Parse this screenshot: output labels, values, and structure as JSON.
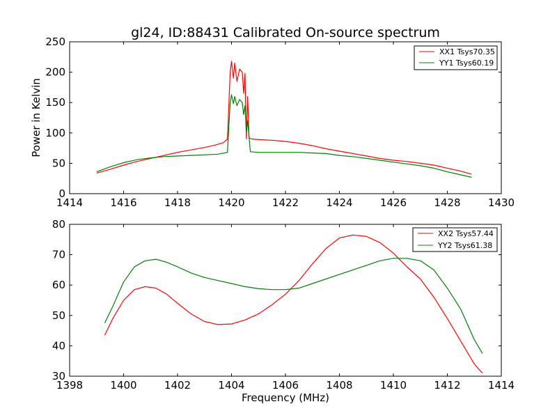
{
  "chart_data": [
    {
      "type": "line",
      "title": "gl24, ID:88431 Calibrated On-source spectrum",
      "xlabel": "",
      "ylabel": "Power in Kelvin",
      "xlim": [
        1414,
        1430
      ],
      "ylim": [
        0,
        250
      ],
      "x_ticks": [
        "1414",
        "1416",
        "1418",
        "1420",
        "1422",
        "1424",
        "1426",
        "1428",
        "1430"
      ],
      "y_ticks": [
        "0",
        "50",
        "100",
        "150",
        "200",
        "250"
      ],
      "legend_position": "top-right",
      "grid": false,
      "series": [
        {
          "name": "XX1 Tsys70.35",
          "color": "#ff0000",
          "points": [
            [
              1415.0,
              34
            ],
            [
              1415.5,
              40
            ],
            [
              1416.0,
              47
            ],
            [
              1416.5,
              53
            ],
            [
              1417.0,
              58
            ],
            [
              1417.5,
              63
            ],
            [
              1418.0,
              68
            ],
            [
              1418.5,
              72
            ],
            [
              1419.0,
              76
            ],
            [
              1419.4,
              80
            ],
            [
              1419.7,
              84
            ],
            [
              1419.85,
              90
            ],
            [
              1419.95,
              200
            ],
            [
              1420.0,
              218
            ],
            [
              1420.07,
              190
            ],
            [
              1420.12,
              215
            ],
            [
              1420.2,
              185
            ],
            [
              1420.3,
              205
            ],
            [
              1420.4,
              200
            ],
            [
              1420.45,
              165
            ],
            [
              1420.5,
              198
            ],
            [
              1420.55,
              90
            ],
            [
              1420.6,
              160
            ],
            [
              1420.65,
              92
            ],
            [
              1420.75,
              90
            ],
            [
              1421.0,
              89
            ],
            [
              1421.5,
              88
            ],
            [
              1422.0,
              86
            ],
            [
              1422.5,
              83
            ],
            [
              1423.0,
              79
            ],
            [
              1423.5,
              74
            ],
            [
              1424.0,
              70
            ],
            [
              1424.5,
              66
            ],
            [
              1425.0,
              62
            ],
            [
              1425.5,
              58
            ],
            [
              1426.0,
              55
            ],
            [
              1426.5,
              53
            ],
            [
              1427.0,
              50
            ],
            [
              1427.5,
              47
            ],
            [
              1428.0,
              42
            ],
            [
              1428.5,
              37
            ],
            [
              1428.9,
              32
            ]
          ]
        },
        {
          "name": "YY1 Tsys60.19",
          "color": "#008000",
          "points": [
            [
              1415.0,
              36
            ],
            [
              1415.5,
              44
            ],
            [
              1416.0,
              51
            ],
            [
              1416.5,
              56
            ],
            [
              1417.0,
              59
            ],
            [
              1417.5,
              61
            ],
            [
              1418.0,
              62
            ],
            [
              1418.5,
              63
            ],
            [
              1419.0,
              64
            ],
            [
              1419.5,
              65
            ],
            [
              1419.85,
              68
            ],
            [
              1419.95,
              150
            ],
            [
              1420.0,
              163
            ],
            [
              1420.07,
              148
            ],
            [
              1420.12,
              160
            ],
            [
              1420.2,
              145
            ],
            [
              1420.3,
              155
            ],
            [
              1420.4,
              150
            ],
            [
              1420.45,
              130
            ],
            [
              1420.5,
              145
            ],
            [
              1420.55,
              100
            ],
            [
              1420.6,
              120
            ],
            [
              1420.7,
              69
            ],
            [
              1421.0,
              68
            ],
            [
              1421.5,
              68
            ],
            [
              1422.0,
              68
            ],
            [
              1422.5,
              68
            ],
            [
              1423.0,
              67
            ],
            [
              1423.5,
              66
            ],
            [
              1424.0,
              63
            ],
            [
              1424.5,
              61
            ],
            [
              1425.0,
              58
            ],
            [
              1425.5,
              55
            ],
            [
              1426.0,
              52
            ],
            [
              1426.5,
              49
            ],
            [
              1427.0,
              46
            ],
            [
              1427.5,
              42
            ],
            [
              1428.0,
              36
            ],
            [
              1428.5,
              31
            ],
            [
              1428.9,
              27
            ]
          ]
        }
      ]
    },
    {
      "type": "line",
      "title": "",
      "xlabel": "Frequency (MHz)",
      "ylabel": "",
      "xlim": [
        1398,
        1414
      ],
      "ylim": [
        30,
        80
      ],
      "x_ticks": [
        "1398",
        "1400",
        "1402",
        "1404",
        "1406",
        "1408",
        "1410",
        "1412",
        "1414"
      ],
      "y_ticks": [
        "30",
        "40",
        "50",
        "60",
        "70",
        "80"
      ],
      "legend_position": "top-right",
      "grid": false,
      "series": [
        {
          "name": "XX2 Tsys57.44",
          "color": "#ff0000",
          "points": [
            [
              1399.3,
              43.5
            ],
            [
              1399.6,
              49
            ],
            [
              1400.0,
              55
            ],
            [
              1400.4,
              58.5
            ],
            [
              1400.8,
              59.5
            ],
            [
              1401.2,
              59
            ],
            [
              1401.6,
              57
            ],
            [
              1402.0,
              54
            ],
            [
              1402.5,
              50.5
            ],
            [
              1403.0,
              48
            ],
            [
              1403.5,
              47
            ],
            [
              1404.0,
              47.2
            ],
            [
              1404.5,
              48.5
            ],
            [
              1405.0,
              50.5
            ],
            [
              1405.5,
              53.5
            ],
            [
              1406.0,
              57
            ],
            [
              1406.5,
              61.5
            ],
            [
              1407.0,
              67
            ],
            [
              1407.5,
              72
            ],
            [
              1408.0,
              75.5
            ],
            [
              1408.5,
              76.5
            ],
            [
              1409.0,
              76
            ],
            [
              1409.5,
              74
            ],
            [
              1410.0,
              70.5
            ],
            [
              1410.5,
              66
            ],
            [
              1411.0,
              62
            ],
            [
              1411.5,
              56
            ],
            [
              1412.0,
              49
            ],
            [
              1412.5,
              41.5
            ],
            [
              1413.0,
              34
            ],
            [
              1413.3,
              31
            ]
          ]
        },
        {
          "name": "YY2 Tsys61.38",
          "color": "#008000",
          "points": [
            [
              1399.3,
              47.5
            ],
            [
              1399.6,
              53
            ],
            [
              1400.0,
              61
            ],
            [
              1400.4,
              66
            ],
            [
              1400.8,
              68
            ],
            [
              1401.2,
              68.5
            ],
            [
              1401.6,
              67.5
            ],
            [
              1402.0,
              66
            ],
            [
              1402.5,
              64
            ],
            [
              1403.0,
              62.5
            ],
            [
              1403.5,
              61.5
            ],
            [
              1404.0,
              60.5
            ],
            [
              1404.5,
              59.5
            ],
            [
              1405.0,
              58.8
            ],
            [
              1405.5,
              58.5
            ],
            [
              1406.0,
              58.5
            ],
            [
              1406.5,
              59
            ],
            [
              1407.0,
              60.5
            ],
            [
              1407.5,
              62
            ],
            [
              1408.0,
              63.5
            ],
            [
              1408.5,
              65
            ],
            [
              1409.0,
              66.5
            ],
            [
              1409.5,
              68
            ],
            [
              1410.0,
              68.8
            ],
            [
              1410.5,
              68.8
            ],
            [
              1411.0,
              68
            ],
            [
              1411.5,
              65
            ],
            [
              1412.0,
              59
            ],
            [
              1412.5,
              52
            ],
            [
              1413.0,
              42
            ],
            [
              1413.3,
              37.5
            ]
          ]
        }
      ]
    }
  ]
}
